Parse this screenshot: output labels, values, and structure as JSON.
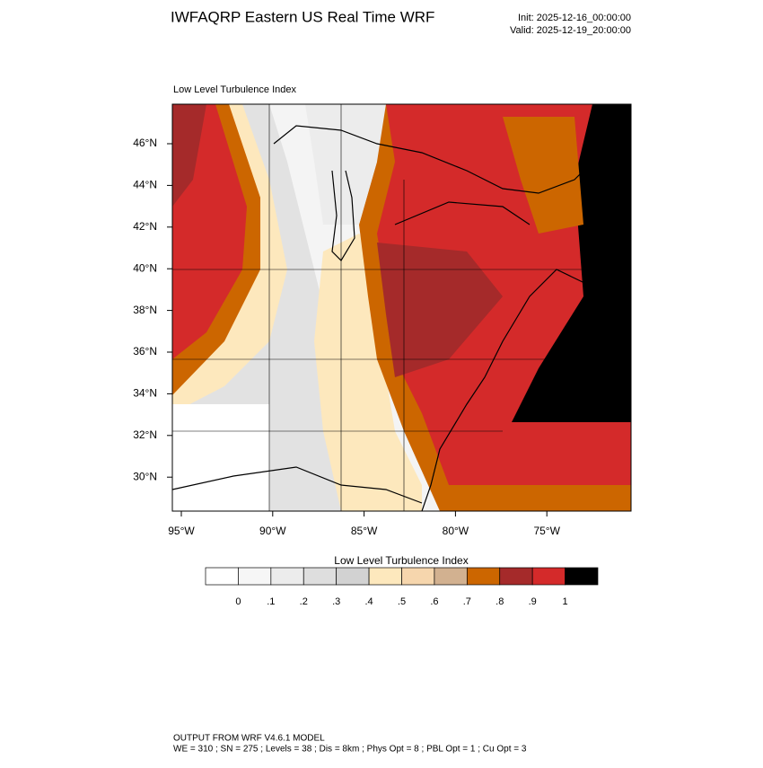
{
  "header": {
    "title": "IWFAQRP Eastern US Real Time WRF",
    "init": "Init: 2025-12-16_00:00:00",
    "valid": "Valid: 2025-12-19_20:00:00"
  },
  "map": {
    "subtitle": "Low Level Turbulence Index",
    "lat_labels": [
      "46°N",
      "44°N",
      "42°N",
      "40°N",
      "38°N",
      "36°N",
      "34°N",
      "32°N",
      "30°N"
    ],
    "lon_labels": [
      "95°W",
      "90°W",
      "85°W",
      "80°W",
      "75°W"
    ]
  },
  "colorbar": {
    "title": "Low Level Turbulence Index",
    "colors": [
      "#ffffff",
      "#f6f6f6",
      "#ececec",
      "#dedede",
      "#d2d2d2",
      "#fde8bd",
      "#f6d6ad",
      "#d2b190",
      "#cc6600",
      "#a52a2a",
      "#d42a2a",
      "#000000"
    ],
    "ticks": [
      0,
      {
        "value": 0.1,
        "label": ".1"
      },
      {
        "value": 0.2,
        "label": ".2"
      },
      {
        "value": 0.3,
        "label": ".3"
      },
      {
        "value": 0.4,
        "label": ".4"
      },
      {
        "value": 0.5,
        "label": ".5"
      },
      {
        "value": 0.6,
        "label": ".6"
      },
      {
        "value": 0.7,
        "label": ".7"
      },
      {
        "value": 0.8,
        "label": ".8"
      },
      {
        "value": 0.9,
        "label": ".9"
      },
      1
    ]
  },
  "footer": {
    "line1": "OUTPUT FROM WRF V4.6.1 MODEL",
    "line2": "WE = 310 ; SN = 275 ; Levels = 38 ; Dis = 8km ; Phys Opt = 8 ; PBL Opt = 1 ; Cu Opt = 3"
  }
}
